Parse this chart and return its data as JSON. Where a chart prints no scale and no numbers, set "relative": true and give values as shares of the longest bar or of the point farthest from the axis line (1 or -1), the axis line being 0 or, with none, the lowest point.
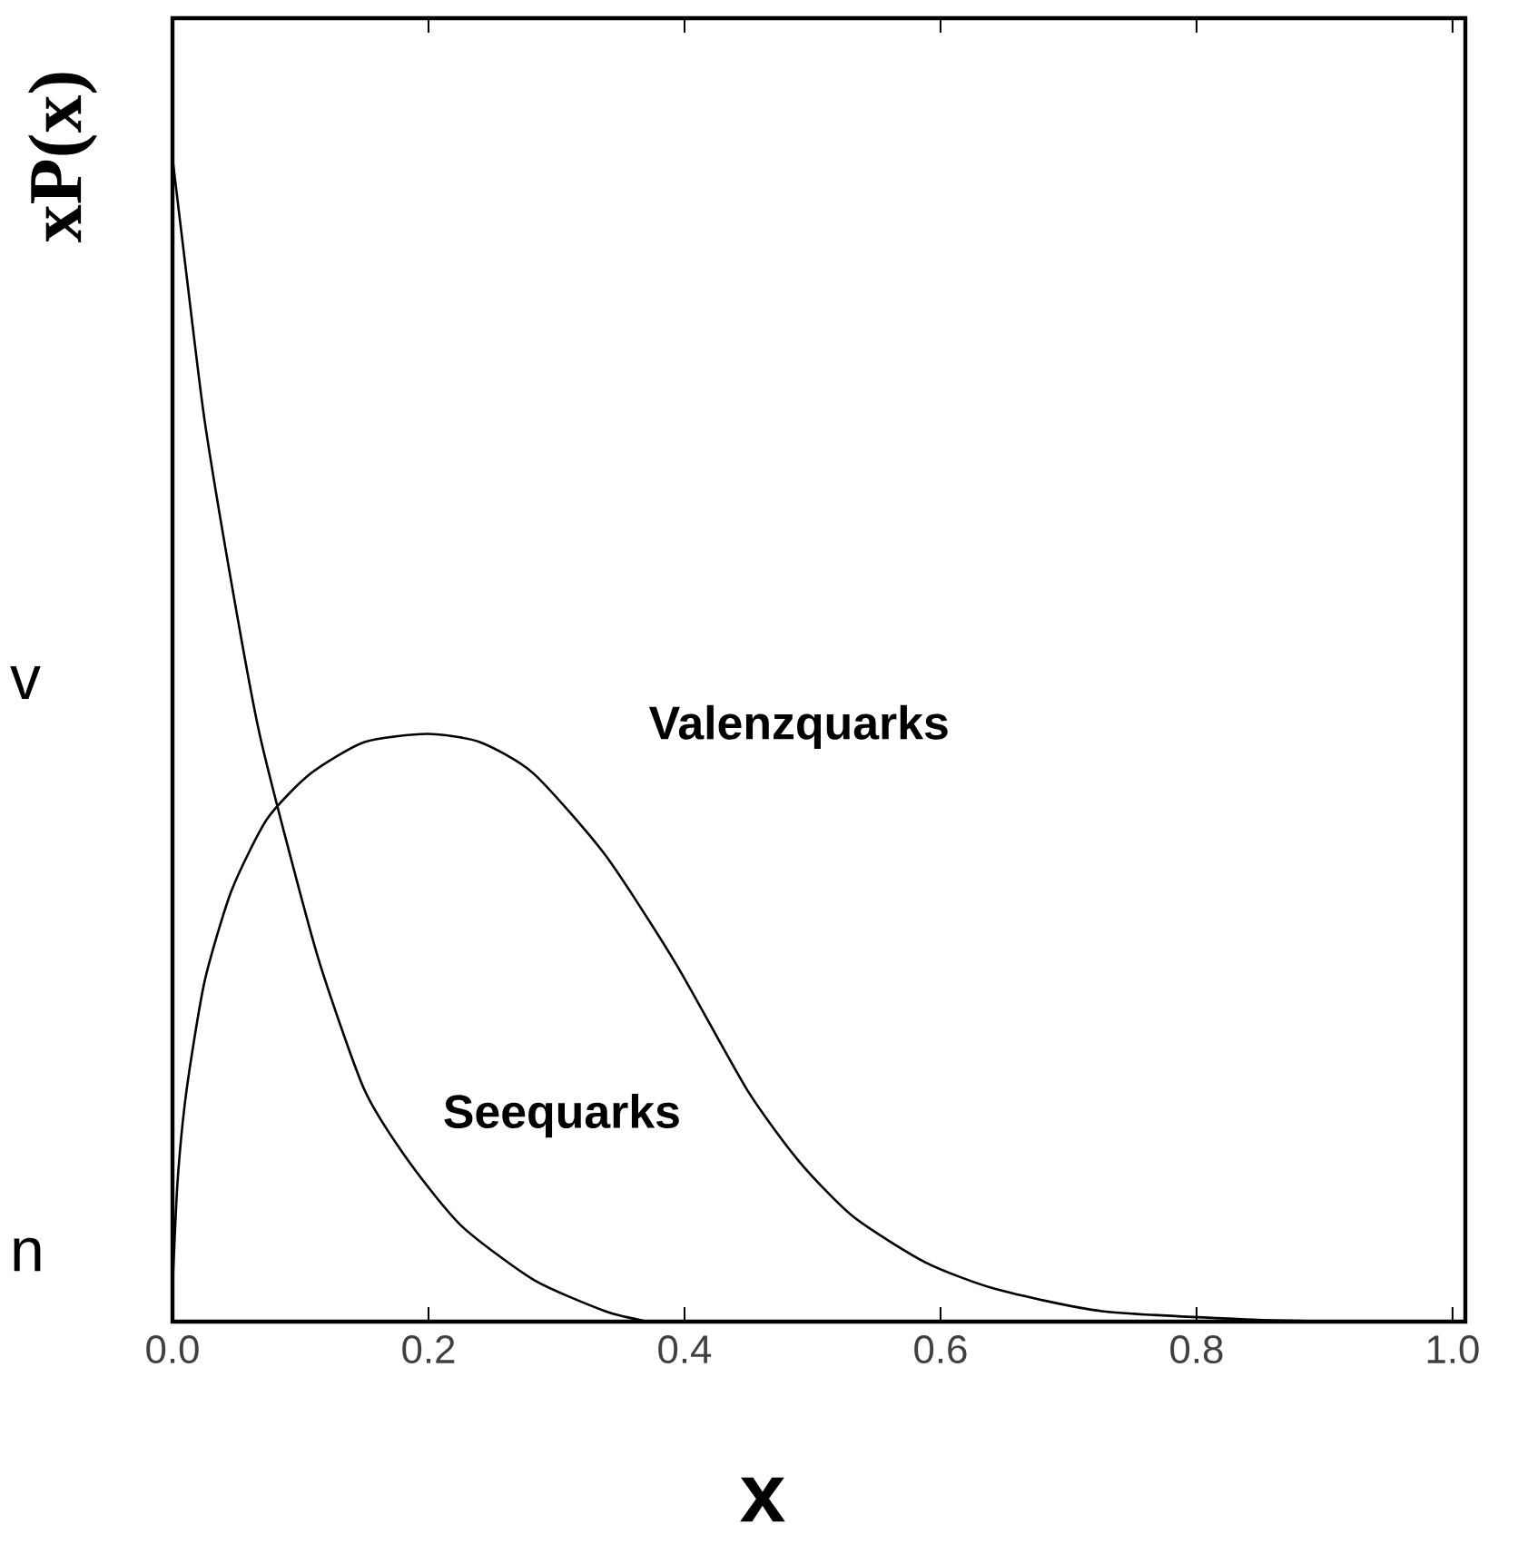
{
  "chart_data": {
    "type": "line",
    "relative": true,
    "xlabel": "x",
    "ylabel": "xP(x)",
    "xlim": [
      0,
      1.01
    ],
    "xticks": [
      {
        "value": 0,
        "label": "0.0"
      },
      {
        "value": 0.2,
        "label": "0.2"
      },
      {
        "value": 0.4,
        "label": "0.4"
      },
      {
        "value": 0.6,
        "label": "0.6"
      },
      {
        "value": 0.8,
        "label": "0.8"
      },
      {
        "value": 1,
        "label": "1.0"
      }
    ],
    "series": [
      {
        "name": "Valenzquarks",
        "color": "#000000",
        "x": [
          0,
          0.004,
          0.011,
          0.025,
          0.046,
          0.074,
          0.108,
          0.15,
          0.199,
          0.24,
          0.282,
          0.338,
          0.393,
          0.449,
          0.49,
          0.532,
          0.588,
          0.643,
          0.726,
          0.838,
          0.92
        ],
        "values": [
          0.028,
          0.121,
          0.199,
          0.292,
          0.37,
          0.432,
          0.471,
          0.498,
          0.505,
          0.498,
          0.471,
          0.401,
          0.308,
          0.199,
          0.137,
          0.09,
          0.051,
          0.028,
          0.009,
          0.002,
          0
        ]
      },
      {
        "name": "Seequarks",
        "color": "#000000",
        "x": [
          0,
          0.011,
          0.025,
          0.046,
          0.067,
          0.088,
          0.115,
          0.15,
          0.185,
          0.226,
          0.282,
          0.338,
          0.372
        ],
        "values": [
          1,
          0.899,
          0.775,
          0.635,
          0.51,
          0.417,
          0.308,
          0.199,
          0.137,
          0.082,
          0.036,
          0.009,
          0
        ]
      }
    ],
    "annotations": [
      "v",
      "n"
    ],
    "marker": "none",
    "line_style": "solid"
  }
}
